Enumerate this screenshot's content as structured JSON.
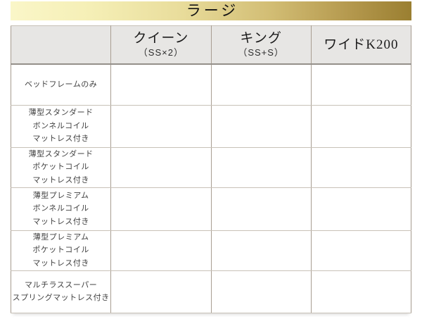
{
  "header_bar": {
    "title": "ラージ",
    "colors": {
      "gradient_left": "#faf6c8",
      "gradient_right": "#9a7f31",
      "title_text": "#141414"
    }
  },
  "table": {
    "colors": {
      "header_cell_background": "#e7e6e4",
      "body_cell_background": "#ffffff",
      "border": "#a89d91"
    },
    "columns": [
      {
        "label": "",
        "sub": ""
      },
      {
        "label": "クイーン",
        "sub": "（SS×2）"
      },
      {
        "label": "キング",
        "sub": "（SS+S）"
      },
      {
        "label": "ワイドK200",
        "sub": ""
      }
    ],
    "rows": [
      {
        "label": "ベッドフレームのみ",
        "values": [
          "",
          "",
          ""
        ]
      },
      {
        "label": "薄型スタンダード\nボンネルコイル\nマットレス付き",
        "values": [
          "",
          "",
          ""
        ]
      },
      {
        "label": "薄型スタンダード\nポケットコイル\nマットレス付き",
        "values": [
          "",
          "",
          ""
        ]
      },
      {
        "label": "薄型プレミアム\nボンネルコイル\nマットレス付き",
        "values": [
          "",
          "",
          ""
        ]
      },
      {
        "label": "薄型プレミアム\nポケットコイル\nマットレス付き",
        "values": [
          "",
          "",
          ""
        ]
      },
      {
        "label": "マルチラススーパー\nスプリングマットレス付き",
        "values": [
          "",
          "",
          ""
        ]
      }
    ]
  }
}
